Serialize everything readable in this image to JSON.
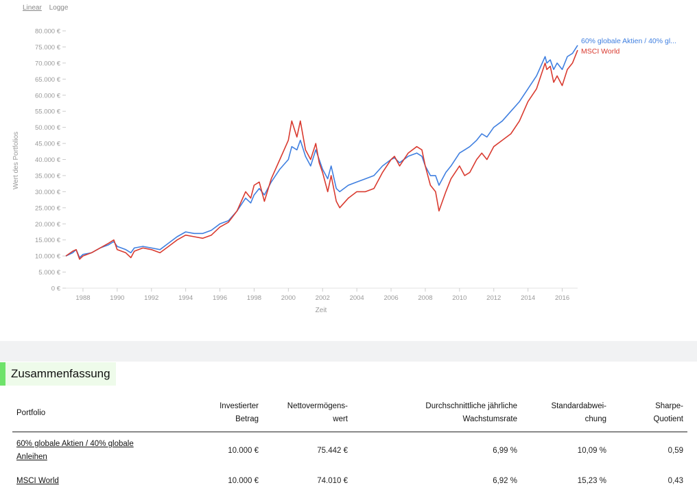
{
  "scale_toggle": {
    "linear": "Linear",
    "log": "Logge"
  },
  "chart_data": {
    "type": "line",
    "ylabel": "Wert des Portfolios",
    "xlabel": "Zeit",
    "ylim": [
      0,
      80000
    ],
    "xlim": [
      1987.0,
      2016.9
    ],
    "y_ticks": [
      "0 €",
      "5.000 €",
      "10.000 €",
      "15.000 €",
      "20.000 €",
      "25.000 €",
      "30.000 €",
      "35.000 €",
      "40.000 €",
      "45.000 €",
      "50.000 €",
      "55.000 €",
      "60.000 €",
      "65.000 €",
      "70.000 €",
      "75.000 €",
      "80.000 €"
    ],
    "x_ticks": [
      "1988",
      "1990",
      "1992",
      "1994",
      "1996",
      "1998",
      "2000",
      "2002",
      "2004",
      "2006",
      "2008",
      "2010",
      "2012",
      "2014",
      "2016"
    ],
    "grid": false,
    "legend": "right",
    "series": [
      {
        "name": "60% globale Aktien / 40% gl...",
        "color": "#3f7fe0",
        "x": [
          1987.0,
          1987.4,
          1987.6,
          1987.8,
          1988.0,
          1988.5,
          1989.0,
          1989.5,
          1989.8,
          1990.0,
          1990.5,
          1990.8,
          1991.0,
          1991.5,
          1992.0,
          1992.5,
          1993.0,
          1993.5,
          1994.0,
          1994.5,
          1995.0,
          1995.5,
          1996.0,
          1996.5,
          1997.0,
          1997.5,
          1997.8,
          1998.0,
          1998.3,
          1998.6,
          1999.0,
          1999.5,
          2000.0,
          2000.2,
          2000.5,
          2000.7,
          2001.0,
          2001.3,
          2001.6,
          2001.8,
          2002.0,
          2002.3,
          2002.5,
          2002.8,
          2003.0,
          2003.5,
          2004.0,
          2004.5,
          2005.0,
          2005.5,
          2006.0,
          2006.2,
          2006.5,
          2007.0,
          2007.5,
          2007.8,
          2008.0,
          2008.3,
          2008.6,
          2008.8,
          2009.0,
          2009.2,
          2009.5,
          2010.0,
          2010.3,
          2010.6,
          2011.0,
          2011.3,
          2011.6,
          2012.0,
          2012.5,
          2013.0,
          2013.5,
          2014.0,
          2014.5,
          2015.0,
          2015.1,
          2015.3,
          2015.5,
          2015.7,
          2016.0,
          2016.3,
          2016.6,
          2016.9
        ],
        "values": [
          10000,
          11000,
          12000,
          9500,
          10500,
          11000,
          12500,
          13500,
          14500,
          13000,
          12000,
          11000,
          12500,
          13000,
          12500,
          12000,
          14000,
          16000,
          17500,
          17000,
          17000,
          18000,
          20000,
          21000,
          24000,
          28000,
          26500,
          29000,
          31000,
          29000,
          33000,
          37000,
          40000,
          44000,
          43000,
          46000,
          41000,
          38000,
          43000,
          40000,
          37000,
          34000,
          38000,
          31000,
          30000,
          32000,
          33000,
          34000,
          35000,
          38000,
          40000,
          40500,
          39000,
          41000,
          42000,
          41000,
          38000,
          35000,
          35000,
          32000,
          34000,
          36000,
          38000,
          42000,
          43000,
          44000,
          46000,
          48000,
          47000,
          50000,
          52000,
          55000,
          58000,
          62000,
          66000,
          72000,
          70000,
          71000,
          68000,
          70000,
          68000,
          72000,
          73000,
          75500
        ]
      },
      {
        "name": "MSCI World",
        "color": "#d93a2f",
        "x": [
          1987.0,
          1987.4,
          1987.6,
          1987.8,
          1988.0,
          1988.5,
          1989.0,
          1989.5,
          1989.8,
          1990.0,
          1990.5,
          1990.8,
          1991.0,
          1991.5,
          1992.0,
          1992.5,
          1993.0,
          1993.5,
          1994.0,
          1994.5,
          1995.0,
          1995.5,
          1996.0,
          1996.5,
          1997.0,
          1997.5,
          1997.8,
          1998.0,
          1998.3,
          1998.6,
          1999.0,
          1999.5,
          2000.0,
          2000.2,
          2000.5,
          2000.7,
          2001.0,
          2001.3,
          2001.6,
          2001.8,
          2002.0,
          2002.3,
          2002.5,
          2002.8,
          2003.0,
          2003.5,
          2004.0,
          2004.5,
          2005.0,
          2005.5,
          2006.0,
          2006.2,
          2006.5,
          2007.0,
          2007.5,
          2007.8,
          2008.0,
          2008.3,
          2008.6,
          2008.8,
          2009.0,
          2009.2,
          2009.5,
          2010.0,
          2010.3,
          2010.6,
          2011.0,
          2011.3,
          2011.6,
          2012.0,
          2012.5,
          2013.0,
          2013.5,
          2014.0,
          2014.5,
          2015.0,
          2015.1,
          2015.3,
          2015.5,
          2015.7,
          2016.0,
          2016.3,
          2016.6,
          2016.9
        ],
        "values": [
          10000,
          11500,
          12000,
          9000,
          10000,
          11000,
          12500,
          14000,
          15000,
          12000,
          11000,
          9500,
          11500,
          12500,
          12000,
          11000,
          13000,
          15000,
          16500,
          16000,
          15500,
          16500,
          19000,
          20500,
          24000,
          30000,
          28000,
          32000,
          33000,
          27000,
          34000,
          40000,
          46000,
          52000,
          47000,
          52000,
          43000,
          40000,
          45000,
          39000,
          36000,
          30000,
          35000,
          27000,
          25000,
          28000,
          30000,
          30000,
          31000,
          36000,
          40000,
          41000,
          38000,
          42000,
          44000,
          43000,
          38000,
          32000,
          30000,
          24000,
          27000,
          30000,
          34000,
          38000,
          35000,
          36000,
          40000,
          42000,
          40000,
          44000,
          46000,
          48000,
          52000,
          58000,
          62000,
          70000,
          68000,
          69000,
          64000,
          66000,
          63000,
          68000,
          70000,
          74000
        ]
      }
    ]
  },
  "summary": {
    "title": "Zusammenfassung",
    "headers": {
      "portfolio": "Portfolio",
      "invested_1": "Investierter",
      "invested_2": "Betrag",
      "net_1": "Nettovermögens-",
      "net_2": "wert",
      "cagr_1": "Durchschnittliche jährliche",
      "cagr_2": "Wachstumsrate",
      "std_1": "Standardabwei-",
      "std_2": "chung",
      "sharpe_1": "Sharpe-",
      "sharpe_2": "Quotient"
    },
    "rows": [
      {
        "name_1": "60% globale Aktien / 40% globale",
        "name_2": "Anleihen",
        "invested": "10.000 €",
        "net": "75.442 €",
        "cagr": "6,99 %",
        "std": "10,09 %",
        "sharpe": "0,59"
      },
      {
        "name_1": "MSCI World",
        "name_2": "",
        "invested": "10.000 €",
        "net": "74.010 €",
        "cagr": "6,92 %",
        "std": "15,23 %",
        "sharpe": "0,43"
      }
    ]
  }
}
